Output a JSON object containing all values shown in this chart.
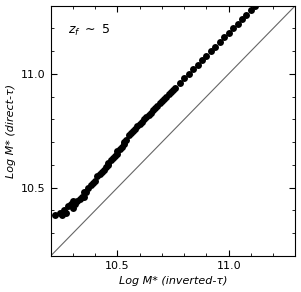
{
  "title": "",
  "xlabel": "Log M* (inverted-τ)",
  "ylabel": "Log M* (direct-τ)",
  "annotation": "z_f ~ 5",
  "xlim": [
    10.2,
    11.3
  ],
  "ylim": [
    10.2,
    11.3
  ],
  "xticks": [
    10.5,
    11.0
  ],
  "yticks": [
    10.5,
    11.0
  ],
  "one_to_one_line_color": "#666666",
  "scatter_color": "#000000",
  "background_color": "#ffffff",
  "marker_size": 5,
  "x_data": [
    10.22,
    10.24,
    10.25,
    10.26,
    10.27,
    10.28,
    10.29,
    10.3,
    10.3,
    10.31,
    10.32,
    10.33,
    10.34,
    10.35,
    10.35,
    10.36,
    10.37,
    10.38,
    10.39,
    10.4,
    10.41,
    10.42,
    10.43,
    10.44,
    10.45,
    10.46,
    10.46,
    10.47,
    10.48,
    10.49,
    10.5,
    10.5,
    10.51,
    10.52,
    10.53,
    10.53,
    10.54,
    10.55,
    10.56,
    10.57,
    10.58,
    10.59,
    10.6,
    10.61,
    10.62,
    10.63,
    10.64,
    10.65,
    10.66,
    10.67,
    10.68,
    10.69,
    10.7,
    10.71,
    10.72,
    10.73,
    10.74,
    10.75,
    10.76,
    10.78,
    10.8,
    10.82,
    10.84,
    10.86,
    10.88,
    10.9,
    10.92,
    10.94,
    10.96,
    10.98,
    11.0,
    11.02,
    11.04,
    11.06,
    11.08,
    11.1,
    11.12,
    11.15,
    11.18,
    11.22
  ],
  "y_data": [
    10.38,
    10.39,
    10.38,
    10.4,
    10.39,
    10.42,
    10.43,
    10.44,
    10.41,
    10.43,
    10.44,
    10.45,
    10.46,
    10.46,
    10.48,
    10.48,
    10.5,
    10.51,
    10.52,
    10.53,
    10.55,
    10.56,
    10.57,
    10.58,
    10.59,
    10.6,
    10.61,
    10.62,
    10.63,
    10.64,
    10.65,
    10.66,
    10.67,
    10.68,
    10.69,
    10.7,
    10.71,
    10.73,
    10.74,
    10.75,
    10.76,
    10.77,
    10.78,
    10.79,
    10.8,
    10.81,
    10.82,
    10.83,
    10.84,
    10.85,
    10.86,
    10.87,
    10.88,
    10.89,
    10.9,
    10.91,
    10.92,
    10.93,
    10.94,
    10.96,
    10.98,
    11.0,
    11.02,
    11.04,
    11.06,
    11.08,
    11.1,
    11.12,
    11.14,
    11.16,
    11.18,
    11.2,
    11.22,
    11.24,
    11.26,
    11.28,
    11.3,
    11.33,
    11.36,
    11.38
  ]
}
